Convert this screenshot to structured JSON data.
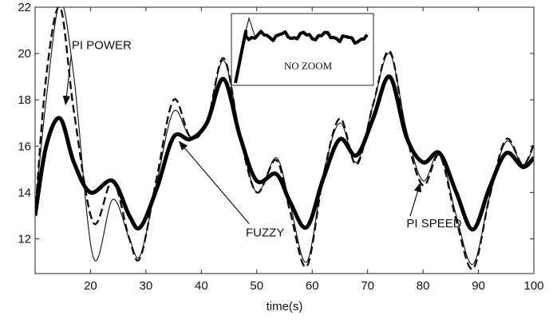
{
  "chart_data": {
    "type": "line",
    "xlabel": "time(s)",
    "ylabel": "",
    "xlim": [
      10,
      100
    ],
    "ylim": [
      10.5,
      22
    ],
    "xticks": [
      20,
      30,
      40,
      50,
      60,
      70,
      80,
      90,
      100
    ],
    "yticks": [
      12,
      14,
      16,
      18,
      20,
      22
    ],
    "grid": false,
    "series": [
      {
        "name": "PI POWER",
        "style": "thin",
        "x": [
          10,
          12,
          14.5,
          17,
          20.5,
          24,
          27,
          29,
          32,
          35,
          38,
          41,
          44,
          47,
          50,
          53.5,
          56,
          59,
          62,
          65,
          68,
          71,
          74,
          77,
          80,
          83,
          86,
          89,
          92,
          95,
          98,
          100
        ],
        "y": [
          13.3,
          18.0,
          22.2,
          19.0,
          11.2,
          13.7,
          12.0,
          11.3,
          14.5,
          17.5,
          16.4,
          17.0,
          19.7,
          16.5,
          14.0,
          15.5,
          13.5,
          11.0,
          14.8,
          17.0,
          15.3,
          17.8,
          20.0,
          16.7,
          14.5,
          15.7,
          13.0,
          10.9,
          13.8,
          16.2,
          15.2,
          16.0
        ]
      },
      {
        "name": "",
        "style": "dashed",
        "x": [
          10,
          12,
          14.5,
          17,
          20.5,
          24,
          27,
          29,
          32,
          35,
          38,
          41,
          44,
          47,
          50,
          53.5,
          56,
          59,
          62,
          65,
          68,
          71,
          74,
          77,
          80,
          83,
          86,
          89,
          92,
          95,
          98,
          100
        ],
        "y": [
          13.0,
          19.0,
          22.0,
          17.5,
          12.7,
          14.5,
          12.0,
          11.2,
          14.7,
          18.0,
          16.4,
          17.0,
          19.8,
          16.4,
          14.0,
          15.4,
          13.2,
          10.8,
          14.7,
          17.2,
          15.2,
          17.8,
          20.1,
          16.5,
          14.3,
          15.6,
          12.8,
          10.7,
          13.8,
          16.3,
          15.2,
          16.1
        ]
      },
      {
        "name": "FUZZY",
        "style": "thick",
        "x": [
          10,
          12,
          14.5,
          17,
          20,
          24,
          27,
          29,
          32,
          35,
          38,
          41,
          44,
          47,
          50,
          53.5,
          56,
          59,
          62,
          65,
          68,
          71,
          74,
          77,
          80,
          83,
          86,
          89,
          92,
          95,
          98,
          100
        ],
        "y": [
          13.0,
          16.0,
          17.2,
          15.3,
          14.0,
          14.5,
          13.0,
          12.5,
          14.2,
          16.4,
          16.3,
          17.0,
          18.9,
          16.4,
          14.5,
          14.8,
          13.6,
          12.5,
          14.6,
          16.3,
          15.6,
          17.2,
          19.0,
          16.4,
          15.3,
          15.7,
          14.0,
          12.4,
          14.2,
          15.7,
          15.1,
          15.5
        ]
      }
    ],
    "annotations": [
      {
        "text": "PI POWER",
        "x": 22,
        "y": 20.2
      },
      {
        "text": "FUZZY",
        "x": 51.5,
        "y": 12.1
      },
      {
        "text": "PI SPEED",
        "x": 82,
        "y": 12.5
      }
    ],
    "inset": {
      "label": "NO ZOOM"
    }
  }
}
